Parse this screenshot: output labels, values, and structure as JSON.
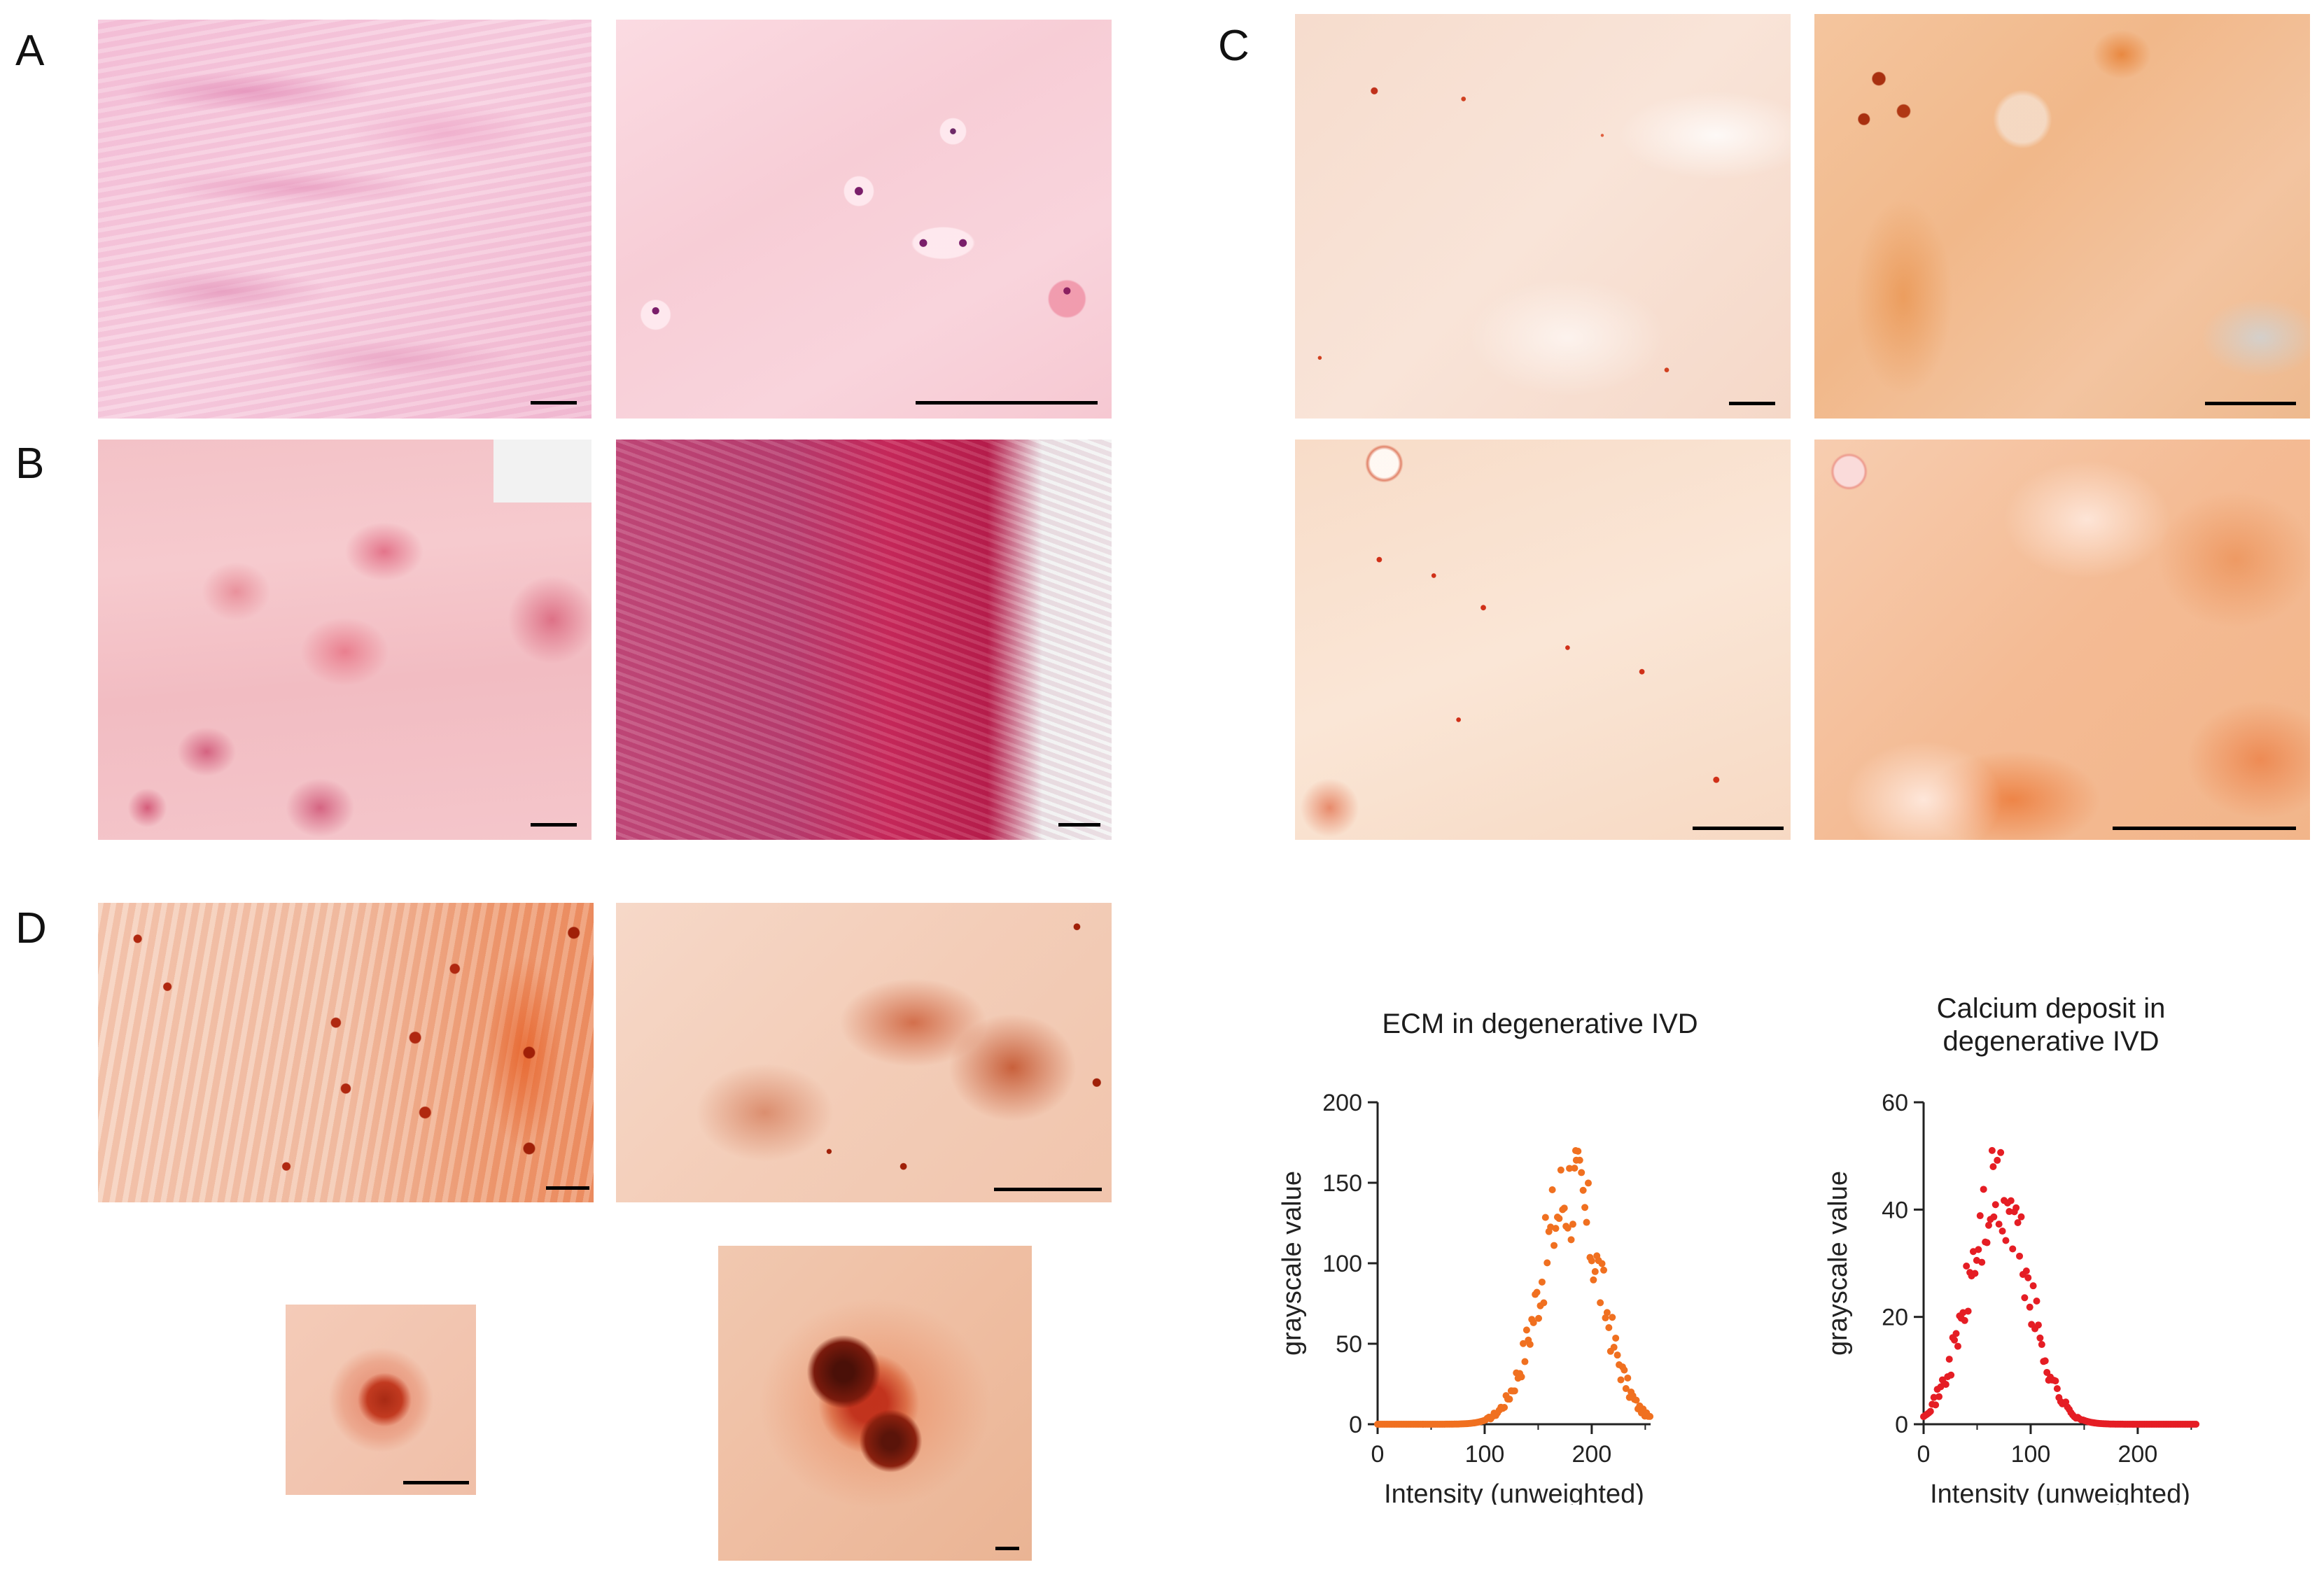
{
  "figure": {
    "panels": [
      {
        "label": "A"
      },
      {
        "label": "B"
      },
      {
        "label": "C"
      },
      {
        "label": "D"
      }
    ],
    "colors": {
      "he_light": "#f4bcd2",
      "he_dark": "#b8285a",
      "alizarin_light": "#f9dcc6",
      "alizarin_dark": "#e0521c",
      "ecm_series": "#f07020",
      "calcium_series": "#e51d24"
    }
  },
  "chart_data": [
    {
      "type": "scatter",
      "title": "ECM in degenerative IVD",
      "xlabel": "Intensity (unweighted)",
      "ylabel": "grayscale value",
      "xticks": [
        0,
        100,
        200
      ],
      "yticks": [
        0,
        50,
        100,
        150,
        200
      ],
      "xlim": [
        0,
        255
      ],
      "ylim": [
        0,
        200
      ],
      "grid": false,
      "color": "#f07020",
      "peak": {
        "x": 185,
        "y": 170
      },
      "profile": "bell",
      "center": 180,
      "sigma": 28,
      "amplitude": 145,
      "x_range": [
        0,
        255
      ]
    },
    {
      "type": "scatter",
      "title": "Calcium deposit in degenerative IVD",
      "xlabel": "Intensity (unweighted)",
      "ylabel": "grayscale value",
      "xticks": [
        0,
        100,
        200
      ],
      "yticks": [
        0,
        20,
        40,
        60
      ],
      "xlim": [
        0,
        255
      ],
      "ylim": [
        0,
        60
      ],
      "grid": false,
      "color": "#e51d24",
      "peak": {
        "x": 65,
        "y": 48
      },
      "profile": "bell",
      "center": 70,
      "sigma": 28,
      "amplitude": 42,
      "x_range": [
        0,
        255
      ]
    }
  ]
}
